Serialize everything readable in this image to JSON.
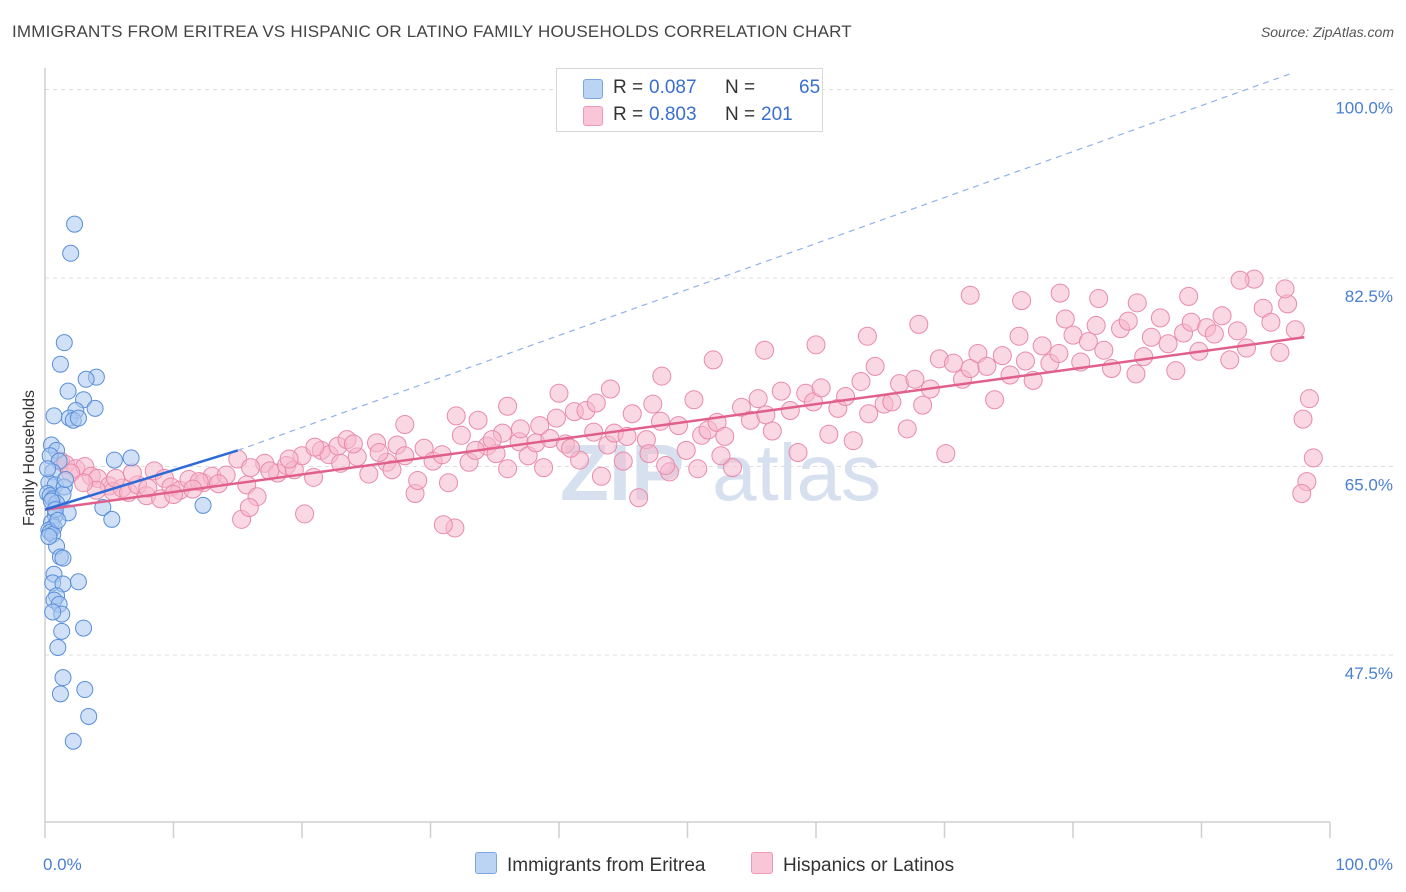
{
  "title": "IMMIGRANTS FROM ERITREA VS HISPANIC OR LATINO FAMILY HOUSEHOLDS CORRELATION CHART",
  "source": "Source: ZipAtlas.com",
  "watermark": "ZIPatlas",
  "legend": {
    "rows": [
      {
        "r_label": "R =",
        "r_value": "0.087",
        "n_label": "N =",
        "n_value": "65",
        "color": "#a8c6f0"
      },
      {
        "r_label": "R =",
        "r_value": "0.803",
        "n_label": "N =",
        "n_value": "201",
        "color": "#f6b8cc"
      }
    ]
  },
  "bottom_legend": {
    "series1": "Immigrants from Eritrea",
    "series2": "Hispanics or Latinos"
  },
  "chart_data": {
    "type": "scatter",
    "ylabel": "Family Households",
    "xlabel": "",
    "x_tick_labels": [
      "0.0%",
      "100.0%"
    ],
    "y_tick_labels": [
      "100.0%",
      "82.5%",
      "65.0%",
      "47.5%"
    ],
    "xlim": [
      0,
      100
    ],
    "ylim": [
      32,
      102
    ],
    "y_gridlines": [
      100,
      82.5,
      65,
      47.5
    ],
    "colors": {
      "eritrea_fill": "#a8c6f0",
      "eritrea_stroke": "#5a8ed8",
      "eritrea_line": "#2e6bd6",
      "hispanic_fill": "#f6b8cc",
      "hispanic_stroke": "#e98aaa",
      "hispanic_line": "#e0608a",
      "watermark": "#d6e0ee"
    },
    "series": [
      {
        "name": "Immigrants from Eritrea",
        "r": 0.087,
        "n": 65,
        "trend": {
          "x": [
            0,
            15
          ],
          "y": [
            61,
            66.5
          ]
        },
        "trend_extension": {
          "x": [
            15,
            97
          ],
          "y": [
            66.5,
            101.5
          ]
        },
        "points": [
          [
            2.3,
            87.5
          ],
          [
            2.0,
            84.8
          ],
          [
            1.5,
            76.5
          ],
          [
            1.2,
            74.5
          ],
          [
            4.0,
            73.3
          ],
          [
            3.2,
            73.1
          ],
          [
            1.8,
            72.0
          ],
          [
            3.0,
            71.2
          ],
          [
            3.9,
            70.4
          ],
          [
            2.4,
            70.2
          ],
          [
            0.7,
            69.7
          ],
          [
            1.9,
            69.5
          ],
          [
            2.2,
            69.3
          ],
          [
            2.6,
            69.5
          ],
          [
            0.5,
            67.0
          ],
          [
            0.9,
            66.5
          ],
          [
            0.4,
            66.0
          ],
          [
            1.1,
            65.5
          ],
          [
            5.4,
            65.6
          ],
          [
            6.7,
            65.8
          ],
          [
            0.6,
            64.5
          ],
          [
            0.3,
            63.5
          ],
          [
            0.8,
            63.3
          ],
          [
            1.5,
            63.1
          ],
          [
            0.2,
            62.5
          ],
          [
            0.4,
            62.3
          ],
          [
            0.6,
            62.0
          ],
          [
            1.4,
            62.4
          ],
          [
            0.9,
            61.6
          ],
          [
            4.5,
            61.2
          ],
          [
            12.3,
            61.4
          ],
          [
            1.8,
            60.7
          ],
          [
            5.2,
            60.1
          ],
          [
            0.8,
            60.5
          ],
          [
            0.5,
            59.8
          ],
          [
            0.7,
            59.4
          ],
          [
            0.3,
            59.1
          ],
          [
            0.4,
            58.9
          ],
          [
            0.6,
            58.7
          ],
          [
            0.9,
            57.6
          ],
          [
            1.2,
            56.6
          ],
          [
            1.4,
            56.5
          ],
          [
            0.7,
            55.0
          ],
          [
            0.6,
            54.2
          ],
          [
            2.6,
            54.3
          ],
          [
            1.4,
            54.1
          ],
          [
            0.9,
            53.0
          ],
          [
            0.7,
            52.6
          ],
          [
            1.1,
            52.2
          ],
          [
            1.3,
            51.3
          ],
          [
            0.6,
            51.5
          ],
          [
            3.0,
            50.0
          ],
          [
            1.3,
            49.7
          ],
          [
            1.0,
            48.2
          ],
          [
            1.4,
            45.4
          ],
          [
            3.1,
            44.3
          ],
          [
            1.2,
            43.9
          ],
          [
            3.4,
            41.8
          ],
          [
            2.2,
            39.5
          ],
          [
            0.5,
            61.8
          ],
          [
            0.8,
            61.0
          ],
          [
            1.0,
            60.0
          ],
          [
            0.3,
            58.5
          ],
          [
            0.2,
            64.8
          ],
          [
            1.6,
            63.8
          ]
        ]
      },
      {
        "name": "Hispanics or Latinos",
        "r": 0.803,
        "n": 201,
        "trend": {
          "x": [
            0,
            98
          ],
          "y": [
            61.0,
            77.0
          ]
        },
        "points": [
          [
            1.2,
            65.5
          ],
          [
            1.6,
            65.2
          ],
          [
            2.4,
            64.8
          ],
          [
            3.1,
            65.0
          ],
          [
            3.6,
            64.1
          ],
          [
            4.1,
            63.9
          ],
          [
            5.0,
            63.2
          ],
          [
            5.3,
            62.7
          ],
          [
            6.0,
            63.0
          ],
          [
            6.5,
            62.6
          ],
          [
            7.2,
            63.3
          ],
          [
            7.9,
            62.3
          ],
          [
            8.5,
            64.6
          ],
          [
            9.3,
            63.9
          ],
          [
            9.8,
            63.1
          ],
          [
            10.5,
            62.8
          ],
          [
            11.2,
            63.8
          ],
          [
            12.3,
            63.5
          ],
          [
            13.0,
            64.1
          ],
          [
            14.1,
            64.2
          ],
          [
            15.0,
            65.7
          ],
          [
            15.7,
            63.3
          ],
          [
            16.5,
            62.2
          ],
          [
            17.1,
            65.3
          ],
          [
            18.1,
            64.4
          ],
          [
            18.8,
            65.1
          ],
          [
            19.4,
            64.7
          ],
          [
            20.2,
            60.6
          ],
          [
            20.9,
            64.0
          ],
          [
            21.5,
            66.5
          ],
          [
            22.1,
            66.1
          ],
          [
            22.8,
            66.9
          ],
          [
            23.5,
            67.5
          ],
          [
            24.3,
            65.9
          ],
          [
            25.2,
            64.3
          ],
          [
            25.8,
            67.2
          ],
          [
            26.6,
            65.4
          ],
          [
            27.4,
            67.0
          ],
          [
            28.0,
            66.0
          ],
          [
            28.8,
            62.5
          ],
          [
            29.5,
            66.7
          ],
          [
            30.2,
            65.5
          ],
          [
            30.9,
            66.1
          ],
          [
            31.4,
            63.5
          ],
          [
            31.9,
            59.3
          ],
          [
            32.4,
            67.9
          ],
          [
            33.0,
            65.4
          ],
          [
            33.7,
            69.3
          ],
          [
            34.4,
            66.9
          ],
          [
            35.1,
            66.2
          ],
          [
            35.6,
            68.1
          ],
          [
            36.0,
            64.8
          ],
          [
            36.9,
            67.3
          ],
          [
            37.6,
            66.0
          ],
          [
            38.2,
            67.2
          ],
          [
            38.8,
            64.9
          ],
          [
            39.3,
            67.6
          ],
          [
            39.8,
            69.5
          ],
          [
            40.5,
            67.1
          ],
          [
            41.2,
            70.1
          ],
          [
            41.6,
            65.6
          ],
          [
            42.1,
            70.2
          ],
          [
            42.7,
            68.2
          ],
          [
            43.3,
            64.1
          ],
          [
            43.8,
            67.0
          ],
          [
            44.3,
            68.1
          ],
          [
            45.0,
            65.5
          ],
          [
            45.7,
            69.9
          ],
          [
            46.2,
            62.1
          ],
          [
            46.8,
            67.5
          ],
          [
            47.3,
            70.8
          ],
          [
            47.9,
            69.2
          ],
          [
            48.6,
            64.5
          ],
          [
            49.3,
            68.8
          ],
          [
            49.9,
            66.5
          ],
          [
            50.5,
            71.2
          ],
          [
            51.1,
            67.9
          ],
          [
            51.6,
            68.4
          ],
          [
            52.3,
            69.1
          ],
          [
            52.9,
            67.8
          ],
          [
            53.5,
            64.9
          ],
          [
            54.2,
            70.5
          ],
          [
            54.9,
            69.3
          ],
          [
            55.5,
            71.3
          ],
          [
            56.1,
            69.8
          ],
          [
            56.6,
            68.3
          ],
          [
            57.3,
            72.0
          ],
          [
            58.0,
            70.2
          ],
          [
            58.6,
            66.3
          ],
          [
            59.2,
            71.8
          ],
          [
            59.8,
            71.0
          ],
          [
            60.4,
            72.3
          ],
          [
            61.0,
            68.0
          ],
          [
            61.7,
            70.4
          ],
          [
            62.3,
            71.5
          ],
          [
            62.9,
            67.4
          ],
          [
            63.5,
            72.9
          ],
          [
            64.1,
            69.9
          ],
          [
            64.6,
            74.3
          ],
          [
            65.3,
            70.8
          ],
          [
            65.9,
            71.0
          ],
          [
            66.5,
            72.7
          ],
          [
            67.1,
            68.5
          ],
          [
            67.7,
            73.1
          ],
          [
            68.3,
            70.7
          ],
          [
            68.9,
            72.2
          ],
          [
            69.6,
            75.0
          ],
          [
            70.1,
            66.2
          ],
          [
            70.7,
            74.6
          ],
          [
            71.4,
            73.1
          ],
          [
            72.0,
            74.1
          ],
          [
            72.6,
            75.5
          ],
          [
            73.3,
            74.3
          ],
          [
            73.9,
            71.2
          ],
          [
            74.5,
            75.3
          ],
          [
            75.1,
            73.5
          ],
          [
            75.8,
            77.1
          ],
          [
            76.3,
            74.8
          ],
          [
            76.9,
            73.0
          ],
          [
            77.6,
            76.2
          ],
          [
            78.2,
            74.6
          ],
          [
            78.9,
            75.5
          ],
          [
            79.4,
            78.7
          ],
          [
            80.0,
            77.2
          ],
          [
            80.6,
            74.7
          ],
          [
            81.2,
            76.6
          ],
          [
            81.8,
            78.1
          ],
          [
            82.4,
            75.8
          ],
          [
            83.0,
            74.1
          ],
          [
            83.7,
            77.8
          ],
          [
            84.3,
            78.5
          ],
          [
            84.9,
            73.6
          ],
          [
            85.5,
            75.2
          ],
          [
            86.1,
            77.0
          ],
          [
            86.8,
            78.8
          ],
          [
            87.4,
            76.4
          ],
          [
            88.0,
            73.9
          ],
          [
            88.6,
            77.4
          ],
          [
            89.2,
            78.4
          ],
          [
            89.8,
            75.7
          ],
          [
            90.4,
            77.9
          ],
          [
            91.0,
            77.3
          ],
          [
            91.6,
            79.0
          ],
          [
            92.2,
            74.9
          ],
          [
            92.8,
            77.6
          ],
          [
            93.5,
            76.0
          ],
          [
            94.1,
            82.4
          ],
          [
            94.8,
            79.7
          ],
          [
            95.4,
            78.4
          ],
          [
            96.1,
            75.6
          ],
          [
            96.7,
            80.1
          ],
          [
            97.3,
            77.7
          ],
          [
            97.9,
            69.4
          ],
          [
            98.4,
            71.3
          ],
          [
            98.7,
            65.8
          ],
          [
            98.2,
            63.6
          ],
          [
            97.8,
            62.5
          ],
          [
            96.5,
            81.5
          ],
          [
            93.0,
            82.3
          ],
          [
            89.0,
            80.8
          ],
          [
            85.0,
            80.2
          ],
          [
            82.0,
            80.6
          ],
          [
            79.0,
            81.1
          ],
          [
            76.0,
            80.4
          ],
          [
            72.0,
            80.9
          ],
          [
            68.0,
            78.2
          ],
          [
            64.0,
            77.1
          ],
          [
            60.0,
            76.3
          ],
          [
            56.0,
            75.8
          ],
          [
            52.0,
            74.9
          ],
          [
            48.0,
            73.4
          ],
          [
            44.0,
            72.2
          ],
          [
            40.0,
            71.8
          ],
          [
            36.0,
            70.6
          ],
          [
            32.0,
            69.7
          ],
          [
            28.0,
            68.9
          ],
          [
            24.0,
            67.1
          ],
          [
            20.0,
            66.0
          ],
          [
            16.0,
            64.9
          ],
          [
            12.0,
            63.6
          ],
          [
            8.0,
            63.0
          ],
          [
            4.0,
            62.8
          ],
          [
            2.0,
            64.4
          ],
          [
            3.0,
            63.5
          ],
          [
            5.5,
            63.9
          ],
          [
            6.8,
            64.4
          ],
          [
            9.0,
            62.0
          ],
          [
            10.0,
            62.4
          ],
          [
            11.5,
            62.9
          ],
          [
            13.5,
            63.4
          ],
          [
            15.3,
            60.1
          ],
          [
            15.9,
            61.2
          ],
          [
            17.5,
            64.6
          ],
          [
            19.0,
            65.7
          ],
          [
            21.0,
            66.8
          ],
          [
            23.0,
            65.3
          ],
          [
            26.0,
            66.3
          ],
          [
            27.0,
            64.7
          ],
          [
            29.0,
            63.7
          ],
          [
            31.0,
            59.6
          ],
          [
            33.5,
            66.5
          ],
          [
            34.8,
            67.5
          ],
          [
            37.0,
            68.5
          ],
          [
            38.5,
            68.8
          ],
          [
            40.9,
            66.7
          ],
          [
            42.9,
            70.9
          ],
          [
            45.3,
            67.8
          ],
          [
            47.0,
            66.2
          ],
          [
            48.3,
            65.1
          ],
          [
            50.8,
            64.8
          ],
          [
            52.6,
            66.0
          ]
        ]
      }
    ]
  }
}
